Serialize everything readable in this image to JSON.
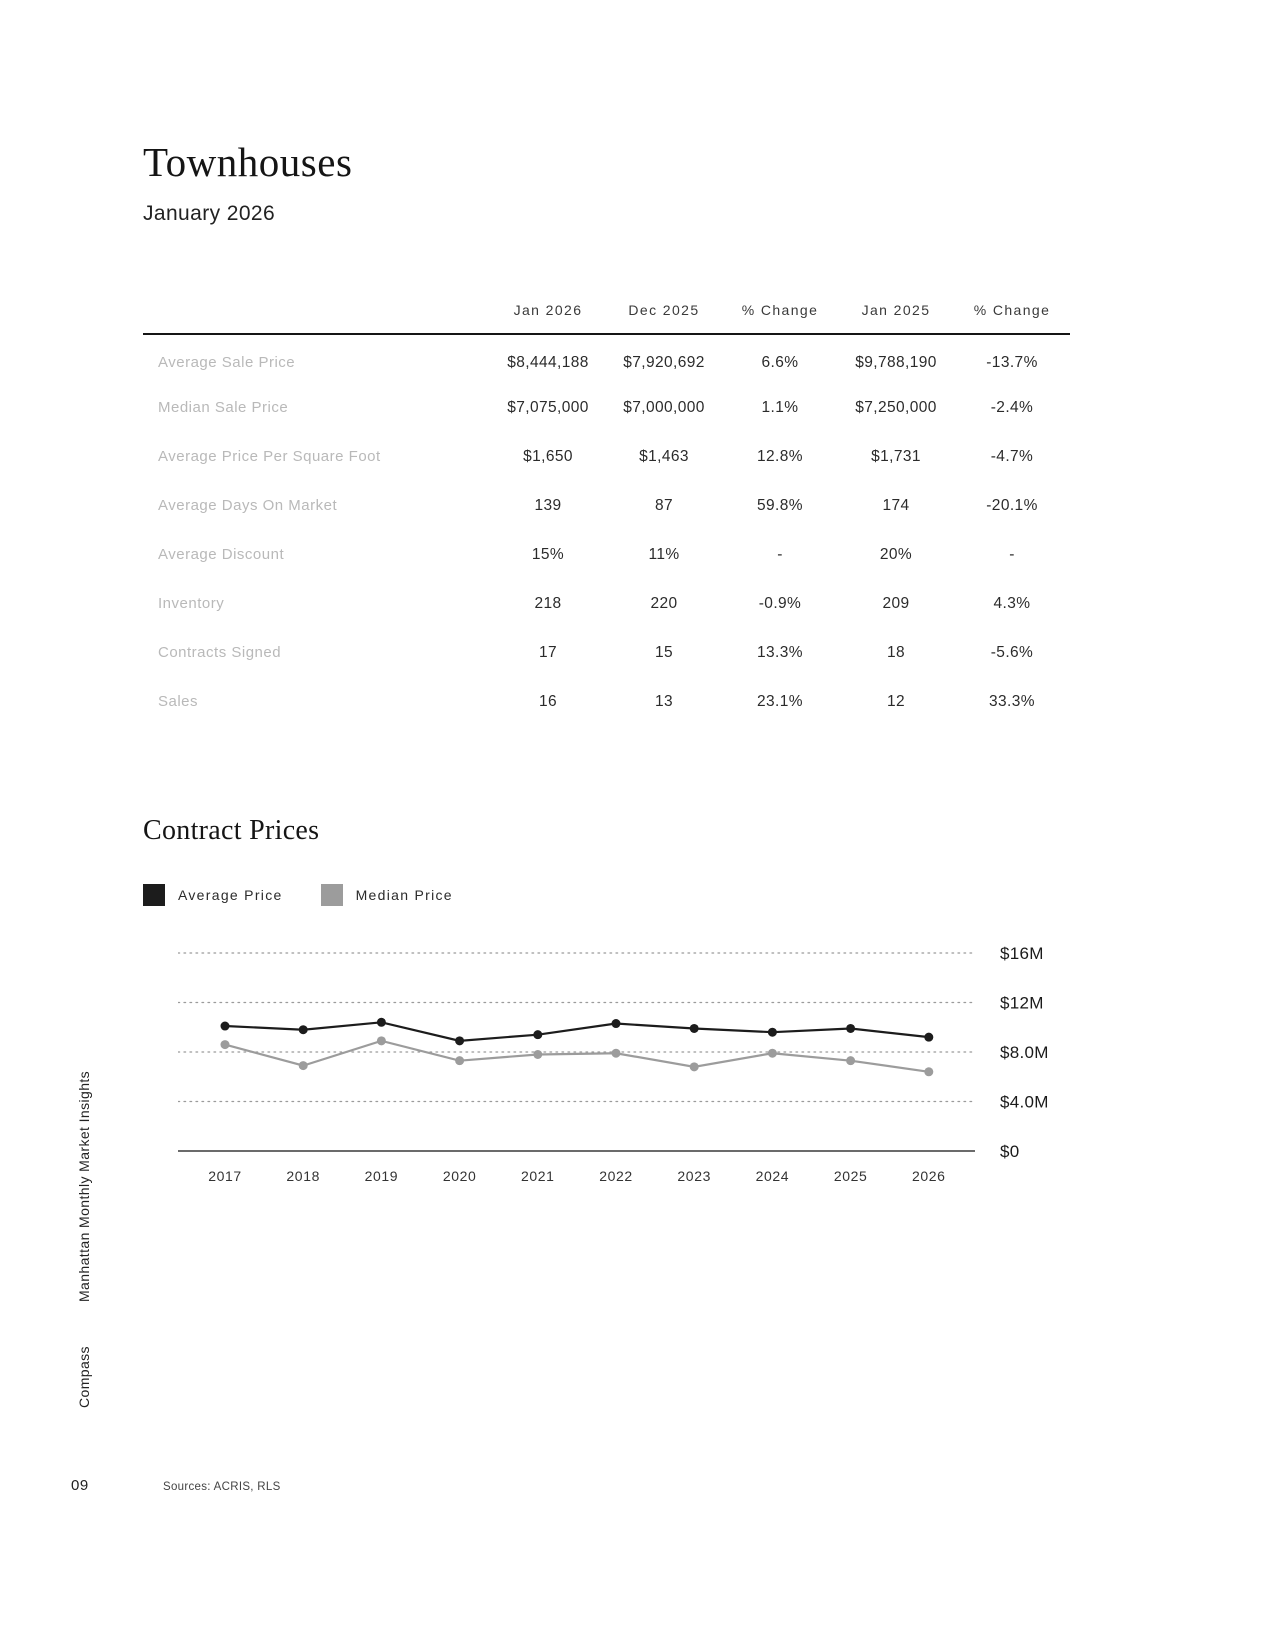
{
  "page": {
    "title": "Townhouses",
    "subtitle": "January 2026",
    "section_title": "Contract Prices",
    "page_number": "09",
    "sources": "Sources: ACRIS, RLS",
    "sidebar_title": "Manhattan Monthly Market Insights",
    "sidebar_brand": "Compass"
  },
  "table": {
    "columns": [
      "Jan 2026",
      "Dec 2025",
      "% Change",
      "Jan 2025",
      "% Change"
    ],
    "rows": [
      {
        "label": "Average Sale Price",
        "values": [
          "$8,444,188",
          "$7,920,692",
          "6.6%",
          "$9,788,190",
          "-13.7%"
        ]
      },
      {
        "label": "Median Sale Price",
        "values": [
          "$7,075,000",
          "$7,000,000",
          "1.1%",
          "$7,250,000",
          "-2.4%"
        ]
      },
      {
        "label": "Average Price Per Square Foot",
        "values": [
          "$1,650",
          "$1,463",
          "12.8%",
          "$1,731",
          "-4.7%"
        ]
      },
      {
        "label": "Average Days On Market",
        "values": [
          "139",
          "87",
          "59.8%",
          "174",
          "-20.1%"
        ]
      },
      {
        "label": "Average Discount",
        "values": [
          "15%",
          "11%",
          "-",
          "20%",
          "-"
        ]
      },
      {
        "label": "Inventory",
        "values": [
          "218",
          "220",
          "-0.9%",
          "209",
          "4.3%"
        ]
      },
      {
        "label": "Contracts Signed",
        "values": [
          "17",
          "15",
          "13.3%",
          "18",
          "-5.6%"
        ]
      },
      {
        "label": "Sales",
        "values": [
          "16",
          "13",
          "23.1%",
          "12",
          "33.3%"
        ]
      }
    ]
  },
  "chart_data": {
    "type": "line",
    "title": "Contract Prices",
    "x": [
      "2017",
      "2018",
      "2019",
      "2020",
      "2021",
      "2022",
      "2023",
      "2024",
      "2025",
      "2026"
    ],
    "series": [
      {
        "name": "Average Price",
        "color": "#1c1c1c",
        "values": [
          10100000,
          9800000,
          10400000,
          8900000,
          9400000,
          10300000,
          9900000,
          9600000,
          9900000,
          9200000
        ]
      },
      {
        "name": "Median Price",
        "color": "#9c9c9c",
        "values": [
          8600000,
          6900000,
          8900000,
          7300000,
          7800000,
          7900000,
          6800000,
          7900000,
          7300000,
          6400000
        ]
      }
    ],
    "ylim": [
      0,
      16000000
    ],
    "yticks": [
      {
        "value": 0,
        "label": "$0"
      },
      {
        "value": 4000000,
        "label": "$4.0M"
      },
      {
        "value": 8000000,
        "label": "$8.0M"
      },
      {
        "value": 12000000,
        "label": "$12M"
      },
      {
        "value": 16000000,
        "label": "$16M"
      }
    ],
    "grid": "horizontal-dotted",
    "legend_position": "top-left"
  }
}
